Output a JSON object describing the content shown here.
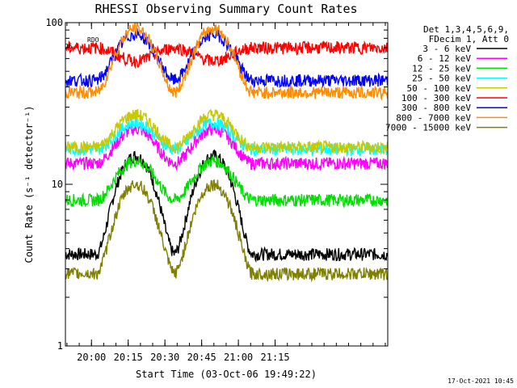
{
  "chart_data": {
    "type": "line",
    "title": "RHESSI Observing Summary Count Rates",
    "xlabel": "Start Time (03-Oct-06 19:49:22)",
    "ylabel": "Count Rate (s⁻¹ detector⁻¹)",
    "yscale": "log",
    "ylim": [
      1,
      100
    ],
    "xlim": [
      "19:49:22",
      "22:01:00"
    ],
    "x_ticks": [
      "20:00",
      "20:15",
      "20:30",
      "20:45",
      "21:00",
      "21:15"
    ],
    "y_ticks": [
      "1",
      "10",
      "100"
    ],
    "legend_header": [
      "Det 1,3,4,5,6,9,",
      "FDecim 1, Att 0"
    ],
    "legend_position": "right",
    "flag_labels": [
      "RDO",
      "RO6"
    ],
    "timestamp": "17-Oct-2021 10:45",
    "series": [
      {
        "name": "3 - 6 keV",
        "color": "#000000",
        "base": 3.7,
        "peak": 15
      },
      {
        "name": "6 - 12 keV",
        "color": "#ff00ff",
        "base": 13.5,
        "peak": 22
      },
      {
        "name": "12 - 25 keV",
        "color": "#00dd00",
        "base": 8,
        "peak": 14
      },
      {
        "name": "25 - 50 keV",
        "color": "#00ffff",
        "base": 16.5,
        "peak": 24
      },
      {
        "name": "50 - 100 keV",
        "color": "#c8c800",
        "base": 17,
        "peak": 27
      },
      {
        "name": "100 - 300 keV",
        "color": "#ff0000",
        "base": 70,
        "peak": 58
      },
      {
        "name": "300 - 800 keV",
        "color": "#0000ff",
        "base": 44,
        "peak": 85
      },
      {
        "name": "800 - 7000 keV",
        "color": "#ff8c00",
        "base": 37,
        "peak": 92
      },
      {
        "name": "7000 - 15000 keV",
        "color": "#808000",
        "base": 2.8,
        "peak": 10
      }
    ]
  }
}
